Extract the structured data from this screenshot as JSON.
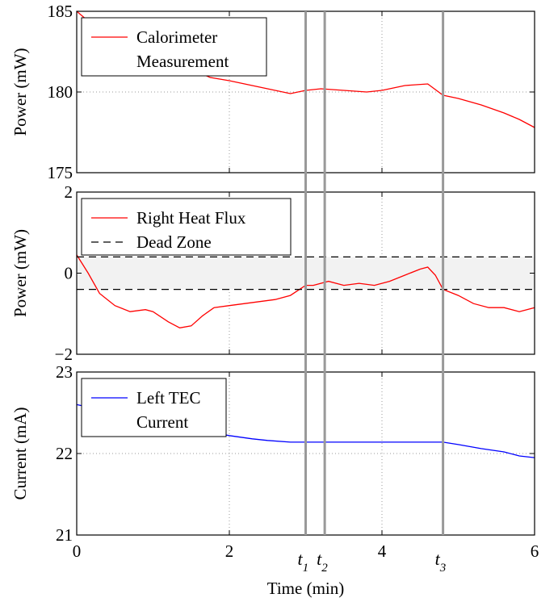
{
  "chart_data": {
    "type": "line",
    "xlabel": "Time (min)",
    "xlim": [
      0,
      6
    ],
    "xticks": [
      0,
      2,
      4,
      6
    ],
    "grid": "dotted",
    "markers": [
      {
        "name": "t",
        "sub": "1",
        "x": 3.0
      },
      {
        "name": "t",
        "sub": "2",
        "x": 3.25
      },
      {
        "name": "t",
        "sub": "3",
        "x": 4.8
      }
    ],
    "panels": [
      {
        "ylabel": "Power (mW)",
        "ylim": [
          175,
          185
        ],
        "yticks": [
          175,
          180,
          185
        ],
        "legend_position": "top-left",
        "series": [
          {
            "name": "Calorimeter\nMeasurement",
            "color": "#ff0000",
            "style": "solid",
            "x": [
              0,
              0.25,
              0.5,
              0.8,
              1.2,
              1.5,
              1.75,
              2.0,
              2.2,
              2.5,
              2.8,
              3.0,
              3.2,
              3.5,
              3.8,
              4.0,
              4.3,
              4.6,
              4.8,
              5.0,
              5.3,
              5.6,
              5.8,
              6.0
            ],
            "y": [
              185.0,
              184.0,
              183.1,
              182.4,
              181.9,
              181.4,
              180.9,
              180.7,
              180.5,
              180.2,
              179.9,
              180.1,
              180.2,
              180.1,
              180.0,
              180.1,
              180.4,
              180.5,
              179.8,
              179.6,
              179.2,
              178.7,
              178.3,
              177.8
            ]
          }
        ]
      },
      {
        "ylabel": "Power (mW)",
        "ylim": [
          -2,
          2
        ],
        "yticks": [
          -2,
          0,
          2
        ],
        "ytick_labels": [
          "−2",
          "0",
          "2"
        ],
        "legend_position": "top-left",
        "band": [
          -0.4,
          0.4
        ],
        "series": [
          {
            "name": "Right Heat Flux",
            "color": "#ff0000",
            "style": "solid",
            "x": [
              0,
              0.15,
              0.3,
              0.5,
              0.7,
              0.9,
              1.0,
              1.2,
              1.35,
              1.5,
              1.65,
              1.8,
              2.0,
              2.2,
              2.4,
              2.6,
              2.8,
              3.0,
              3.1,
              3.3,
              3.5,
              3.7,
              3.9,
              4.1,
              4.3,
              4.5,
              4.6,
              4.7,
              4.8,
              5.0,
              5.2,
              5.4,
              5.6,
              5.8,
              6.0
            ],
            "y": [
              0.45,
              0.0,
              -0.5,
              -0.8,
              -0.95,
              -0.9,
              -0.95,
              -1.2,
              -1.35,
              -1.3,
              -1.05,
              -0.85,
              -0.8,
              -0.75,
              -0.7,
              -0.65,
              -0.55,
              -0.3,
              -0.3,
              -0.2,
              -0.3,
              -0.25,
              -0.3,
              -0.2,
              -0.05,
              0.1,
              0.15,
              -0.05,
              -0.4,
              -0.55,
              -0.75,
              -0.85,
              -0.85,
              -0.95,
              -0.85
            ]
          },
          {
            "name": "Dead Zone",
            "color": "#000000",
            "style": "dashed",
            "x": [
              0,
              6
            ],
            "y": [
              0.4,
              0.4
            ]
          },
          {
            "name": "",
            "color": "#000000",
            "style": "dashed",
            "x": [
              0,
              6
            ],
            "y": [
              -0.4,
              -0.4
            ]
          }
        ]
      },
      {
        "ylabel": "Current (mA)",
        "ylim": [
          21,
          23
        ],
        "yticks": [
          21,
          22,
          23
        ],
        "legend_position": "top-left",
        "series": [
          {
            "name": "Left TEC\nCurrent",
            "color": "#0000ff",
            "style": "solid",
            "x": [
              0,
              0.1,
              0.5,
              1.0,
              1.5,
              2.0,
              2.3,
              2.5,
              2.8,
              3.0,
              3.5,
              4.0,
              4.5,
              4.8,
              5.0,
              5.3,
              5.6,
              5.8,
              6.0
            ],
            "y": [
              22.6,
              22.58,
              22.5,
              22.4,
              22.3,
              22.22,
              22.18,
              22.16,
              22.14,
              22.14,
              22.14,
              22.14,
              22.14,
              22.14,
              22.11,
              22.06,
              22.02,
              21.97,
              21.95
            ]
          }
        ]
      }
    ]
  }
}
